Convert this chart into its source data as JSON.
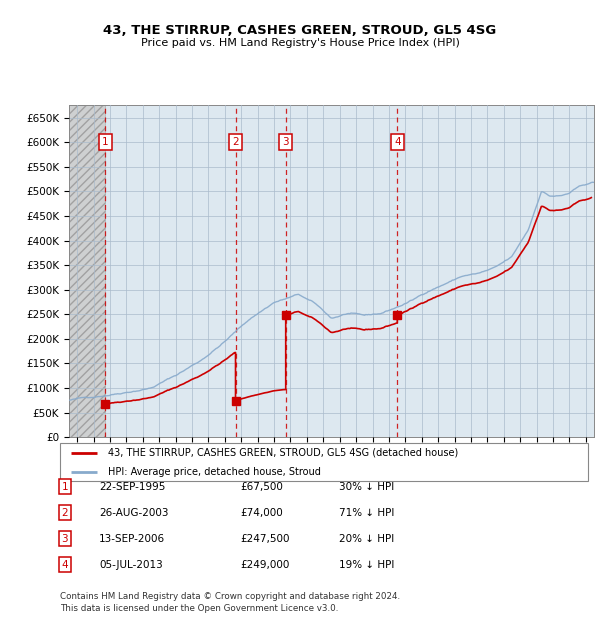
{
  "title": "43, THE STIRRUP, CASHES GREEN, STROUD, GL5 4SG",
  "subtitle": "Price paid vs. HM Land Registry's House Price Index (HPI)",
  "ylabel_ticks": [
    "£0",
    "£50K",
    "£100K",
    "£150K",
    "£200K",
    "£250K",
    "£300K",
    "£350K",
    "£400K",
    "£450K",
    "£500K",
    "£550K",
    "£600K",
    "£650K"
  ],
  "ytick_values": [
    0,
    50000,
    100000,
    150000,
    200000,
    250000,
    300000,
    350000,
    400000,
    450000,
    500000,
    550000,
    600000,
    650000
  ],
  "xlim_start": 1993.5,
  "xlim_end": 2025.5,
  "ylim_min": 0,
  "ylim_max": 675000,
  "hatch_end": 1995.72,
  "transactions": [
    {
      "year_decimal": 1995.72,
      "price": 67500,
      "label": "1"
    },
    {
      "year_decimal": 2003.65,
      "price": 74000,
      "label": "2"
    },
    {
      "year_decimal": 2006.71,
      "price": 247500,
      "label": "3"
    },
    {
      "year_decimal": 2013.51,
      "price": 249000,
      "label": "4"
    }
  ],
  "transaction_color": "#cc0000",
  "hpi_color": "#88aacc",
  "plot_bg_color": "#dde8f0",
  "grid_color": "#aabbcc",
  "legend_entries": [
    "43, THE STIRRUP, CASHES GREEN, STROUD, GL5 4SG (detached house)",
    "HPI: Average price, detached house, Stroud"
  ],
  "table_rows": [
    {
      "num": "1",
      "date": "22-SEP-1995",
      "price": "£67,500",
      "hpi": "30% ↓ HPI"
    },
    {
      "num": "2",
      "date": "26-AUG-2003",
      "price": "£74,000",
      "hpi": "71% ↓ HPI"
    },
    {
      "num": "3",
      "date": "13-SEP-2006",
      "price": "£247,500",
      "hpi": "20% ↓ HPI"
    },
    {
      "num": "4",
      "date": "05-JUL-2013",
      "price": "£249,000",
      "hpi": "19% ↓ HPI"
    }
  ],
  "footer": "Contains HM Land Registry data © Crown copyright and database right 2024.\nThis data is licensed under the Open Government Licence v3.0."
}
